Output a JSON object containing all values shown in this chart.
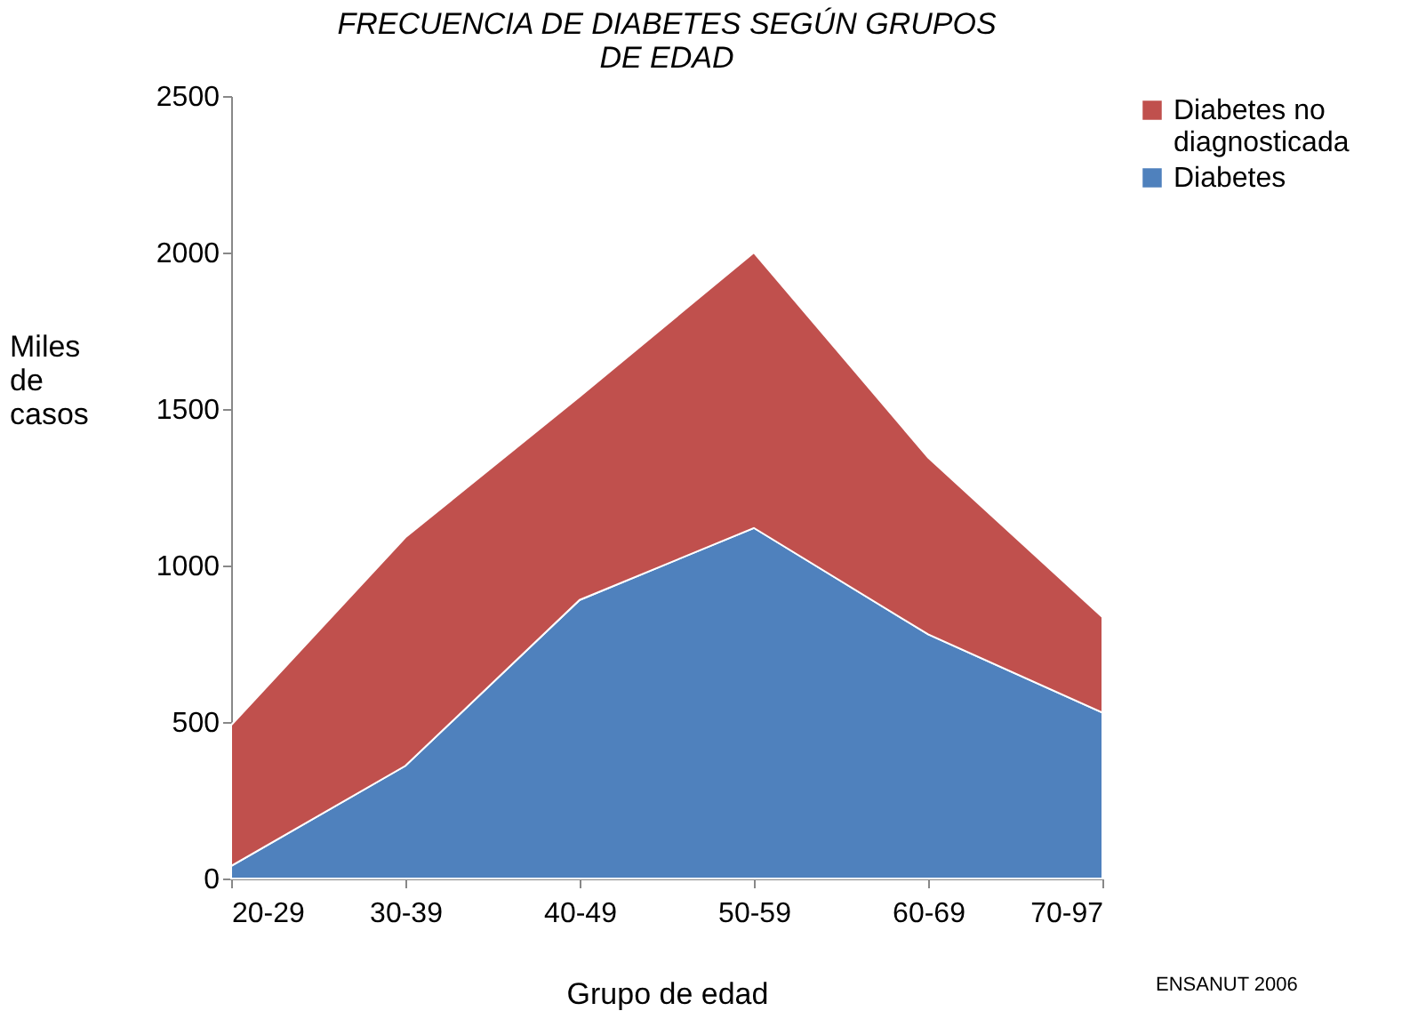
{
  "chart_data": {
    "type": "area",
    "title": "FRECUENCIA DE DIABETES SEGÚN GRUPOS DE EDAD",
    "xlabel": "Grupo de edad",
    "ylabel": "Miles de casos",
    "categories": [
      "20-29",
      "30-39",
      "40-49",
      "50-59",
      "60-69",
      "70-97"
    ],
    "stacked": true,
    "series": [
      {
        "name": "Diabetes",
        "color": "#4f81bd",
        "values": [
          40,
          360,
          890,
          1120,
          780,
          530
        ]
      },
      {
        "name": "Diabetes no diagnosticada",
        "color": "#c0504d",
        "values": [
          450,
          730,
          650,
          880,
          565,
          305
        ]
      }
    ],
    "ylim": [
      0,
      2500
    ],
    "yticks": [
      0,
      500,
      1000,
      1500,
      2000,
      2500
    ],
    "grid": false,
    "legend": "right",
    "annotations": [
      "ENSANUT 2006"
    ]
  }
}
